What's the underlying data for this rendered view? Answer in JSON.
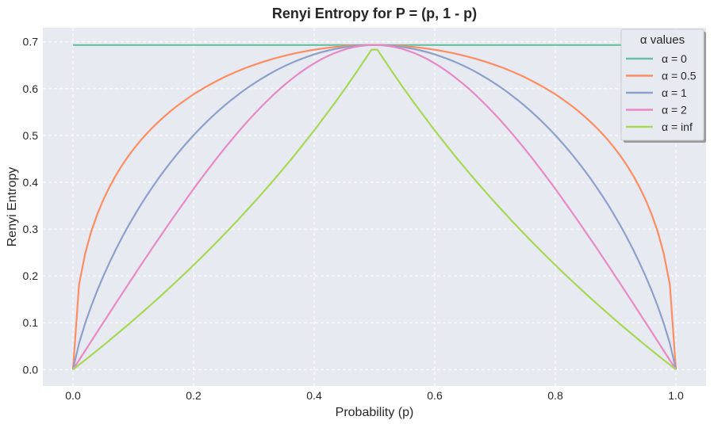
{
  "chart_data": {
    "type": "line",
    "title": "Renyi Entropy for P = (p, 1 - p)",
    "xlabel": "Probability (p)",
    "ylabel": "Renyi Entropy",
    "xlim": [
      -0.05,
      1.05
    ],
    "ylim": [
      -0.035,
      0.73
    ],
    "xticks": [
      0.0,
      0.2,
      0.4,
      0.6,
      0.8,
      1.0
    ],
    "xtick_labels": [
      "0.0",
      "0.2",
      "0.4",
      "0.6",
      "0.8",
      "1.0"
    ],
    "yticks": [
      0.0,
      0.1,
      0.2,
      0.3,
      0.4,
      0.5,
      0.6,
      0.7
    ],
    "ytick_labels": [
      "0.0",
      "0.1",
      "0.2",
      "0.3",
      "0.4",
      "0.5",
      "0.6",
      "0.7"
    ],
    "grid": true,
    "x": {
      "start": 0,
      "stop": 1,
      "num": 100
    },
    "legend": {
      "title": "α values",
      "placement": "top-right"
    },
    "series": [
      {
        "name": "α = 0",
        "alpha": 0,
        "color": "#66c2a5",
        "note": "constant ln 2 = 0.693"
      },
      {
        "name": "α = 0.5",
        "alpha": 0.5,
        "color": "#fc8d62",
        "peak": 0.693
      },
      {
        "name": "α = 1",
        "alpha": 1,
        "color": "#8da0cb",
        "peak": 0.693
      },
      {
        "name": "α = 2",
        "alpha": 2,
        "color": "#e78ac3",
        "peak": 0.693
      },
      {
        "name": "α = inf",
        "alpha": "inf",
        "color": "#a6d854",
        "peak": 0.683
      }
    ]
  }
}
